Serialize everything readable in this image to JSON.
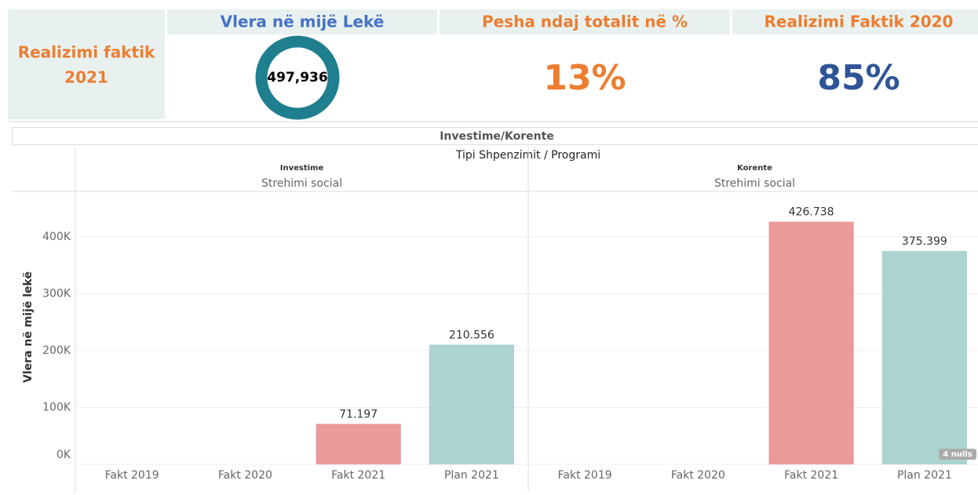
{
  "header": {
    "left_title": "Realizimi faktik 2021",
    "kpis": [
      {
        "title": "Vlera në mijë Lekë",
        "value": "497,936"
      },
      {
        "title": "Pesha ndaj totalit në %",
        "value": "13%"
      },
      {
        "title": "Realizimi Faktik 2020",
        "value": "85%"
      }
    ]
  },
  "chart_data": {
    "type": "bar",
    "title": "Investime/Korente",
    "subtitle": "Tipi Shpenzimit / Programi",
    "y_label": "Vlera në mijë lekë",
    "ylim": [
      0,
      480000
    ],
    "yticks": [
      {
        "value": 0,
        "label": "0K"
      },
      {
        "value": 100000,
        "label": "100K"
      },
      {
        "value": 200000,
        "label": "200K"
      },
      {
        "value": 300000,
        "label": "300K"
      },
      {
        "value": 400000,
        "label": "400K"
      }
    ],
    "grid": true,
    "nulls_indicator": "4 nulls",
    "panels": [
      {
        "name": "Investime",
        "program": "Strehimi social",
        "categories": [
          "Fakt 2019",
          "Fakt 2020",
          "Fakt 2021",
          "Plan 2021"
        ],
        "values": [
          null,
          null,
          71197,
          210556
        ],
        "value_labels": [
          null,
          null,
          "71.197",
          "210.556"
        ],
        "colors": [
          "#e99a99",
          "#e99a99",
          "#e99a99",
          "#abd3cf"
        ]
      },
      {
        "name": "Korente",
        "program": "Strehimi social",
        "categories": [
          "Fakt 2019",
          "Fakt 2020",
          "Fakt 2021",
          "Plan 2021"
        ],
        "values": [
          null,
          null,
          426738,
          375399
        ],
        "value_labels": [
          null,
          null,
          "426.738",
          "375.399"
        ],
        "colors": [
          "#e99a99",
          "#e99a99",
          "#e99a99",
          "#abd3cf"
        ]
      }
    ]
  }
}
